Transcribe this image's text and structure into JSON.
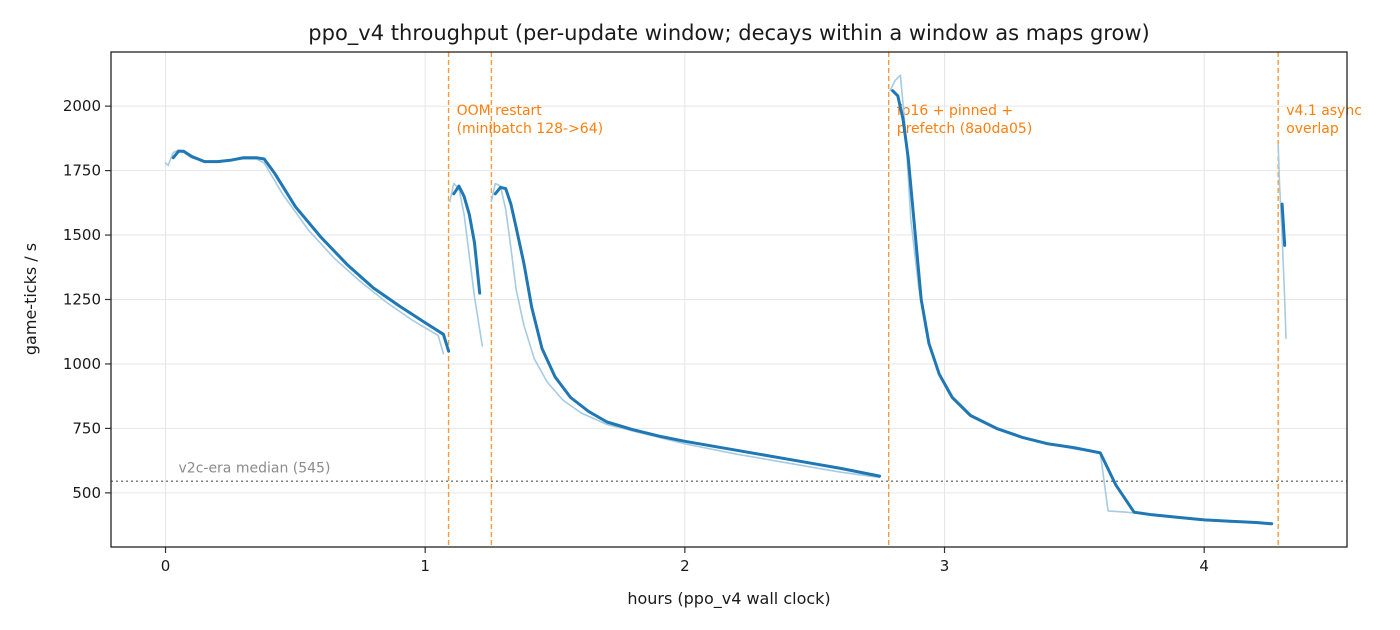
{
  "chart_data": {
    "type": "line",
    "title": "ppo_v4 throughput (per-update window; decays within a window as maps grow)",
    "xlabel": "hours (ppo_v4 wall clock)",
    "ylabel": "game-ticks / s",
    "xlim": [
      -0.21,
      4.55
    ],
    "ylim": [
      290,
      2210
    ],
    "xticks": [
      0,
      1,
      2,
      3,
      4
    ],
    "yticks": [
      500,
      750,
      1000,
      1250,
      1500,
      1750,
      2000
    ],
    "grid": true,
    "colors": {
      "smoothed": "#1f77b4",
      "raw": "#a6cbe3",
      "event": "#ff9933",
      "event_text": "#ff7f0e",
      "median": "#808080"
    },
    "reference_line": {
      "label": "v2c-era median (545)",
      "y": 545
    },
    "events": [
      {
        "x": 1.09,
        "label_lines": [
          "OOM restart",
          "(minibatch 128->64)"
        ]
      },
      {
        "x": 1.255,
        "label_lines": []
      },
      {
        "x": 2.785,
        "label_lines": [
          "fp16 + pinned +",
          "prefetch (8a0da05)"
        ]
      },
      {
        "x": 4.285,
        "label_lines": [
          "v4.1 async",
          "overlap"
        ]
      }
    ],
    "series": [
      {
        "role": "raw",
        "segments": [
          [
            [
              0.0,
              1780
            ],
            [
              0.01,
              1770
            ],
            [
              0.03,
              1820
            ],
            [
              0.05,
              1830
            ],
            [
              0.07,
              1820
            ],
            [
              0.1,
              1800
            ],
            [
              0.15,
              1785
            ],
            [
              0.2,
              1785
            ],
            [
              0.25,
              1790
            ],
            [
              0.3,
              1795
            ],
            [
              0.35,
              1795
            ],
            [
              0.38,
              1780
            ],
            [
              0.45,
              1660
            ],
            [
              0.55,
              1520
            ],
            [
              0.65,
              1410
            ],
            [
              0.75,
              1320
            ],
            [
              0.85,
              1240
            ],
            [
              0.95,
              1170
            ],
            [
              1.05,
              1110
            ],
            [
              1.07,
              1040
            ]
          ],
          [
            [
              1.095,
              1630
            ],
            [
              1.11,
              1700
            ],
            [
              1.13,
              1680
            ],
            [
              1.15,
              1580
            ],
            [
              1.17,
              1420
            ],
            [
              1.19,
              1260
            ],
            [
              1.22,
              1070
            ]
          ],
          [
            [
              1.255,
              1630
            ],
            [
              1.27,
              1700
            ],
            [
              1.29,
              1690
            ],
            [
              1.31,
              1600
            ],
            [
              1.33,
              1450
            ],
            [
              1.35,
              1290
            ],
            [
              1.38,
              1150
            ],
            [
              1.42,
              1020
            ],
            [
              1.47,
              930
            ],
            [
              1.53,
              860
            ],
            [
              1.6,
              810
            ],
            [
              1.7,
              765
            ],
            [
              1.8,
              740
            ],
            [
              1.9,
              715
            ],
            [
              2.0,
              690
            ],
            [
              2.2,
              650
            ],
            [
              2.4,
              615
            ],
            [
              2.6,
              580
            ],
            [
              2.75,
              560
            ]
          ],
          [
            [
              2.79,
              2060
            ],
            [
              2.81,
              2100
            ],
            [
              2.83,
              2120
            ],
            [
              2.85,
              1900
            ],
            [
              2.87,
              1560
            ],
            [
              2.9,
              1300
            ],
            [
              2.93,
              1120
            ],
            [
              2.97,
              980
            ],
            [
              3.02,
              880
            ],
            [
              3.1,
              800
            ],
            [
              3.2,
              750
            ],
            [
              3.3,
              715
            ],
            [
              3.4,
              690
            ],
            [
              3.5,
              670
            ],
            [
              3.6,
              655
            ],
            [
              3.63,
              430
            ],
            [
              3.7,
              425
            ],
            [
              3.8,
              415
            ],
            [
              3.9,
              405
            ],
            [
              4.0,
              395
            ],
            [
              4.1,
              390
            ],
            [
              4.2,
              385
            ],
            [
              4.26,
              380
            ]
          ],
          [
            [
              4.285,
              1850
            ],
            [
              4.29,
              1700
            ],
            [
              4.3,
              1500
            ],
            [
              4.31,
              1250
            ],
            [
              4.315,
              1100
            ]
          ]
        ]
      },
      {
        "role": "smoothed",
        "segments": [
          [
            [
              0.03,
              1800
            ],
            [
              0.05,
              1825
            ],
            [
              0.07,
              1825
            ],
            [
              0.1,
              1805
            ],
            [
              0.15,
              1785
            ],
            [
              0.2,
              1785
            ],
            [
              0.25,
              1790
            ],
            [
              0.3,
              1800
            ],
            [
              0.35,
              1800
            ],
            [
              0.38,
              1795
            ],
            [
              0.42,
              1740
            ],
            [
              0.5,
              1610
            ],
            [
              0.6,
              1490
            ],
            [
              0.7,
              1385
            ],
            [
              0.8,
              1295
            ],
            [
              0.9,
              1225
            ],
            [
              1.0,
              1160
            ],
            [
              1.07,
              1115
            ],
            [
              1.09,
              1050
            ]
          ],
          [
            [
              1.11,
              1660
            ],
            [
              1.13,
              1690
            ],
            [
              1.15,
              1650
            ],
            [
              1.17,
              1580
            ],
            [
              1.19,
              1470
            ],
            [
              1.21,
              1275
            ]
          ],
          [
            [
              1.27,
              1660
            ],
            [
              1.29,
              1685
            ],
            [
              1.31,
              1680
            ],
            [
              1.33,
              1620
            ],
            [
              1.35,
              1530
            ],
            [
              1.38,
              1390
            ],
            [
              1.41,
              1220
            ],
            [
              1.45,
              1060
            ],
            [
              1.5,
              950
            ],
            [
              1.56,
              870
            ],
            [
              1.63,
              815
            ],
            [
              1.7,
              775
            ],
            [
              1.8,
              745
            ],
            [
              1.9,
              720
            ],
            [
              2.0,
              700
            ],
            [
              2.2,
              665
            ],
            [
              2.4,
              630
            ],
            [
              2.6,
              595
            ],
            [
              2.75,
              565
            ]
          ],
          [
            [
              2.8,
              2060
            ],
            [
              2.82,
              2040
            ],
            [
              2.84,
              1950
            ],
            [
              2.86,
              1800
            ],
            [
              2.88,
              1580
            ],
            [
              2.91,
              1250
            ],
            [
              2.94,
              1080
            ],
            [
              2.98,
              960
            ],
            [
              3.03,
              870
            ],
            [
              3.1,
              800
            ],
            [
              3.2,
              750
            ],
            [
              3.3,
              715
            ],
            [
              3.4,
              690
            ],
            [
              3.5,
              675
            ],
            [
              3.6,
              655
            ],
            [
              3.66,
              530
            ],
            [
              3.73,
              425
            ],
            [
              3.8,
              415
            ],
            [
              3.9,
              405
            ],
            [
              4.0,
              395
            ],
            [
              4.1,
              390
            ],
            [
              4.2,
              385
            ],
            [
              4.26,
              380
            ]
          ],
          [
            [
              4.3,
              1620
            ],
            [
              4.31,
              1460
            ]
          ]
        ]
      }
    ]
  }
}
